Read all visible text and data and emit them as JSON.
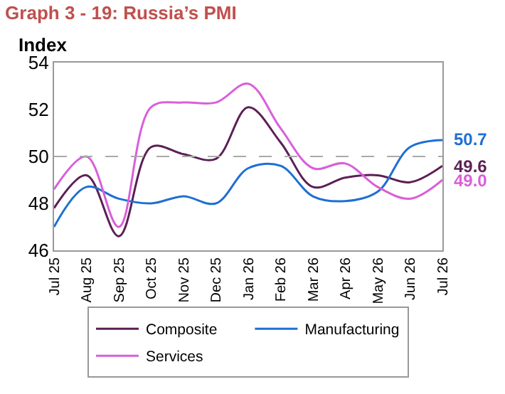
{
  "chart_data": {
    "type": "line",
    "title": "Graph 3 - 19: Russia’s PMI",
    "ylabel": "Index",
    "categories": [
      "Jul 25",
      "Aug 25",
      "Sep 25",
      "Oct 25",
      "Nov 25",
      "Dec 25",
      "Jan 26",
      "Feb 26",
      "Mar 26",
      "Apr 26",
      "May 26",
      "Jun 26",
      "Jul 26"
    ],
    "series": [
      {
        "name": "Composite",
        "color": "#5c1f55",
        "values": [
          47.8,
          49.2,
          46.6,
          50.4,
          50.1,
          49.9,
          52.1,
          50.6,
          48.7,
          49.1,
          49.2,
          48.9,
          49.6
        ],
        "value_labels": [
          null,
          null,
          null,
          null,
          null,
          null,
          null,
          null,
          null,
          null,
          null,
          null,
          "49.6"
        ]
      },
      {
        "name": "Manufacturing",
        "color": "#1f6fd1",
        "values": [
          47.0,
          48.7,
          48.2,
          48.0,
          48.3,
          48.0,
          49.5,
          49.6,
          48.3,
          48.1,
          48.5,
          50.4,
          50.7
        ],
        "value_labels": [
          null,
          null,
          null,
          null,
          null,
          null,
          null,
          null,
          null,
          null,
          null,
          null,
          "50.7"
        ]
      },
      {
        "name": "Services",
        "color": "#d95fd9",
        "values": [
          48.6,
          50.0,
          47.0,
          52.1,
          52.3,
          52.3,
          53.1,
          51.2,
          49.5,
          49.7,
          48.7,
          48.2,
          49.0
        ],
        "value_labels": [
          null,
          null,
          null,
          null,
          null,
          null,
          null,
          null,
          null,
          null,
          null,
          null,
          "49.0"
        ]
      }
    ],
    "ylim": [
      46,
      54
    ],
    "yticks": [
      46,
      48,
      50,
      52,
      54
    ],
    "ref_lines": [
      {
        "axis": "y",
        "value": 50,
        "color": "#aaaaaa",
        "line_style": "dashed"
      }
    ],
    "legend": "bottom",
    "marker": "none",
    "line_style": "solid"
  }
}
